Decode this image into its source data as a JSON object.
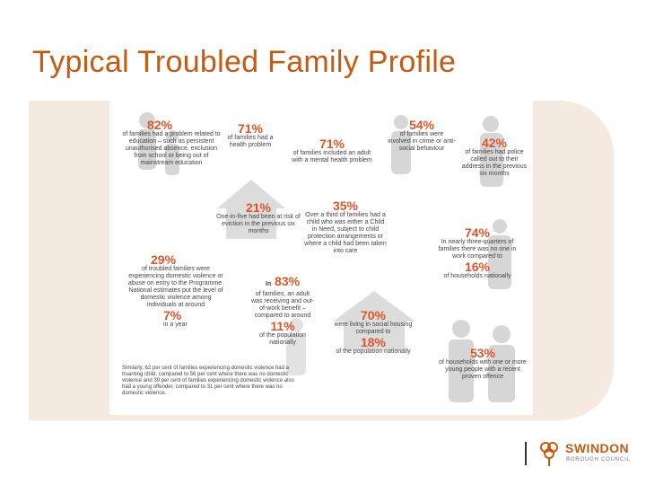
{
  "slide": {
    "title": "Typical Troubled Family Profile"
  },
  "stats": {
    "s1": {
      "pct": "82%",
      "text": "of families had a problem related to education – such as persistent unauthorised absence, exclusion from school or being out of mainstream education"
    },
    "s2": {
      "pct": "71%",
      "text": "of families had a health problem"
    },
    "s3": {
      "pct": "71%",
      "text": "of families included an adult with a mental health problem"
    },
    "s4": {
      "pct": "54%",
      "text": "of families were involved in crime or anti-social behaviour"
    },
    "s5": {
      "pct": "42%",
      "text": "of families had police called out to their address in the previous six months"
    },
    "s6": {
      "pct": "21%",
      "text": "One-in-five had been at risk of eviction in the previous six months"
    },
    "s7": {
      "pct": "35%",
      "text": "Over a third of families had a child who was either a Child in Need, subject to child protection arrangements or where a child had been taken into care"
    },
    "s8": {
      "pct": "74%",
      "text": "In nearly three-quarters of families there was no one in work compared to",
      "pct2": "16%",
      "text2": "of households nationally"
    },
    "s9": {
      "pct": "29%",
      "text": "of troubled families were experiencing domestic violence or abuse on entry to the Programme. National estimates put the level of domestic violence among individuals at around",
      "pct2": "7%",
      "text2": "in a year"
    },
    "s10": {
      "prefix": "In",
      "pct": "83%",
      "text": "of families, an adult was receiving and out-of-work benefit – compared to around",
      "pct2": "11%",
      "text2": "of the population nationally"
    },
    "s11": {
      "pct": "70%",
      "text": "were living in social housing compared to",
      "pct2": "18%",
      "text2": "of the population nationally"
    },
    "s12": {
      "pct": "53%",
      "text": "of households with one or more young people with a recent proven offence"
    }
  },
  "footnote": "Similarly, 62 per cent of families experiencing domestic violence had a truanting child, compared to 56 per cent where there was no domestic violence and 39 per cent of families experiencing domestic violence also had a young offender, compared to 31 per cent where there was no domestic violence.",
  "logo": {
    "name": "SWINDON",
    "sub": "BOROUGH COUNCIL",
    "accent": "#c55a11"
  }
}
